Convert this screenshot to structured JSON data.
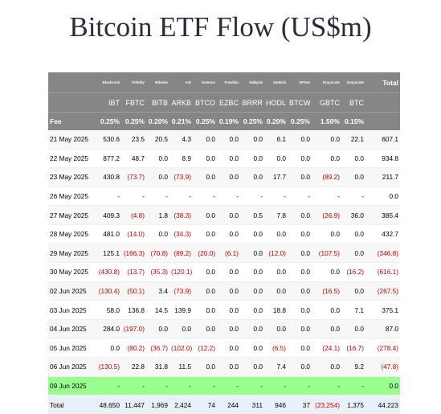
{
  "title": "Bitcoin ETF Flow (US$m)",
  "table": {
    "issuers": [
      "Blackrock",
      "Fidelity",
      "Bitwise",
      "Ark",
      "Invesco",
      "Franklin",
      "Valkyrie",
      "VanEck",
      "WTree",
      "Grayscale",
      "Grayscale",
      "Total"
    ],
    "tickers": [
      "IBT",
      "FBTC",
      "BITB",
      "ARKB",
      "BTCO",
      "EZBC",
      "BRRR",
      "HODL",
      "BTCW",
      "GBTC",
      "BTC"
    ],
    "fee_label": "Fee",
    "fees": [
      "0.25%",
      "0.25%",
      "0.20%",
      "0.21%",
      "0.25%",
      "0.19%",
      "0.25%",
      "0.20%",
      "0.25%",
      "1.50%",
      "0.15%"
    ],
    "rows": [
      [
        "21 May 2025",
        "530.6",
        "23.5",
        "20.5",
        "4.3",
        "0.0",
        "0.0",
        "0.0",
        "6.1",
        "0.0",
        "0.0",
        "22.1",
        "607.1"
      ],
      [
        "22 May 2025",
        "877.2",
        "48.7",
        "0.0",
        "8.9",
        "0.0",
        "0.0",
        "0.0",
        "0.0",
        "0.0",
        "0.0",
        "0.0",
        "934.8"
      ],
      [
        "23 May 2025",
        "430.8",
        "(73.7)",
        "0.0",
        "(73.9)",
        "0.0",
        "0.0",
        "0.0",
        "17.7",
        "0.0",
        "(89.2)",
        "0.0",
        "211.7"
      ],
      [
        "26 May 2025",
        "-",
        "-",
        "-",
        "-",
        "-",
        "-",
        "-",
        "-",
        "-",
        "-",
        "-",
        "0.0"
      ],
      [
        "27 May 2025",
        "409.3",
        "(4.8)",
        "1.8",
        "(38.3)",
        "0.0",
        "0.0",
        "0.5",
        "7.8",
        "0.0",
        "(26.9)",
        "36.0",
        "385.4"
      ],
      [
        "28 May 2025",
        "481.0",
        "(14.0)",
        "0.0",
        "(34.3)",
        "0.0",
        "0.0",
        "0.0",
        "0.0",
        "0.0",
        "0.0",
        "0.0",
        "432.7"
      ],
      [
        "29 May 2025",
        "125.1",
        "(166.3)",
        "(70.8)",
        "(89.2)",
        "(20.0)",
        "(6.1)",
        "0.0",
        "(12.0)",
        "0.0",
        "(107.5)",
        "0.0",
        "(346.8)"
      ],
      [
        "30 May 2025",
        "(430.8)",
        "(13.7)",
        "(35.3)",
        "(120.1)",
        "0.0",
        "0.0",
        "0.0",
        "0.0",
        "0.0",
        "0.0",
        "(16.2)",
        "(616.1)"
      ],
      [
        "02 Jun 2025",
        "(130.4)",
        "(50.1)",
        "3.4",
        "(73.9)",
        "0.0",
        "0.0",
        "0.0",
        "0.0",
        "0.0",
        "(16.5)",
        "0.0",
        "(267.5)"
      ],
      [
        "03 Jun 2025",
        "58.0",
        "136.8",
        "14.5",
        "139.9",
        "0.0",
        "0.0",
        "0.0",
        "18.8",
        "0.0",
        "0.0",
        "7.1",
        "375.1"
      ],
      [
        "04 Jun 2025",
        "284.0",
        "(197.0)",
        "0.0",
        "0.0",
        "0.0",
        "0.0",
        "0.0",
        "0.0",
        "0.0",
        "0.0",
        "0.0",
        "87.0"
      ],
      [
        "05 Jun 2025",
        "0.0",
        "(80.2)",
        "(36.7)",
        "(102.0)",
        "(12.2)",
        "0.0",
        "0.0",
        "(6.5)",
        "0.0",
        "(24.1)",
        "(16.7)",
        "(278.4)"
      ],
      [
        "06 Jun 2025",
        "(130.5)",
        "22.8",
        "31.8",
        "11.5",
        "0.0",
        "0.0",
        "0.0",
        "7.4",
        "0.0",
        "0.0",
        "9.2",
        "(47.8)"
      ],
      [
        "09 Jun 2025",
        "-",
        "-",
        "-",
        "-",
        "-",
        "-",
        "-",
        "-",
        "-",
        "-",
        "-",
        "0.0"
      ]
    ],
    "total": [
      "Total",
      "48,650",
      "11,447",
      "1,969",
      "2,424",
      "74",
      "244",
      "311",
      "946",
      "37",
      "(23,254)",
      "1,375",
      "44,223"
    ]
  }
}
